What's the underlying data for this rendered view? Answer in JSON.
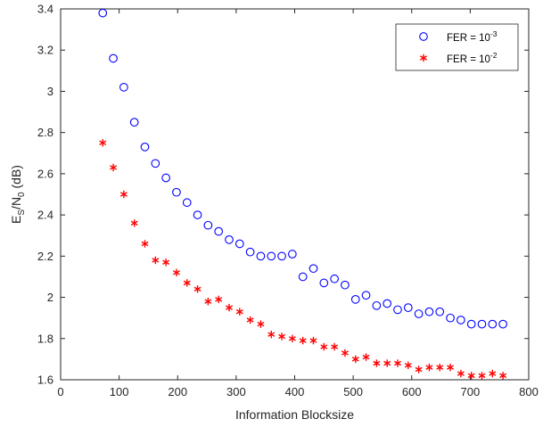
{
  "chart_data": {
    "type": "scatter",
    "xlabel": "Information Blocksize",
    "ylabel": {
      "base": "E",
      "sub1": "S",
      "mid": "/N",
      "sub2": "0",
      "tail": " (dB)"
    },
    "xlim": [
      0,
      800
    ],
    "ylim": [
      1.6,
      3.4
    ],
    "xticks": [
      0,
      100,
      200,
      300,
      400,
      500,
      600,
      700,
      800
    ],
    "yticks": [
      1.6,
      1.8,
      2,
      2.2,
      2.4,
      2.6,
      2.8,
      3,
      3.2,
      3.4
    ],
    "ytick_labels": [
      "1.6",
      "1.8",
      "2",
      "2.2",
      "2.4",
      "2.6",
      "2.8",
      "3",
      "3.2",
      "3.4"
    ],
    "grid": false,
    "legend_position": "top-right",
    "series": [
      {
        "name": "FER = 10-3",
        "legend_label": {
          "text": "FER = 10",
          "exp": "-3"
        },
        "marker": "circle",
        "color": "#0000ff",
        "x": [
          72,
          90,
          108,
          126,
          144,
          162,
          180,
          198,
          216,
          234,
          252,
          270,
          288,
          306,
          324,
          342,
          360,
          378,
          396,
          414,
          432,
          450,
          468,
          486,
          504,
          522,
          540,
          558,
          576,
          594,
          612,
          630,
          648,
          666,
          684,
          702,
          720,
          738,
          756
        ],
        "y": [
          3.38,
          3.16,
          3.02,
          2.85,
          2.73,
          2.65,
          2.58,
          2.51,
          2.46,
          2.4,
          2.35,
          2.32,
          2.28,
          2.26,
          2.22,
          2.2,
          2.2,
          2.2,
          2.21,
          2.1,
          2.14,
          2.07,
          2.09,
          2.06,
          1.99,
          2.01,
          1.96,
          1.97,
          1.94,
          1.95,
          1.92,
          1.93,
          1.93,
          1.9,
          1.89,
          1.87,
          1.87,
          1.87,
          1.87
        ]
      },
      {
        "name": "FER = 10-2",
        "legend_label": {
          "text": "FER = 10",
          "exp": "-2"
        },
        "marker": "star",
        "color": "#ff0000",
        "x": [
          72,
          90,
          108,
          126,
          144,
          162,
          180,
          198,
          216,
          234,
          252,
          270,
          288,
          306,
          324,
          342,
          360,
          378,
          396,
          414,
          432,
          450,
          468,
          486,
          504,
          522,
          540,
          558,
          576,
          594,
          612,
          630,
          648,
          666,
          684,
          702,
          720,
          738,
          756
        ],
        "y": [
          2.75,
          2.63,
          2.5,
          2.36,
          2.26,
          2.18,
          2.17,
          2.12,
          2.07,
          2.04,
          1.98,
          1.99,
          1.95,
          1.93,
          1.89,
          1.87,
          1.82,
          1.81,
          1.8,
          1.79,
          1.79,
          1.76,
          1.76,
          1.73,
          1.7,
          1.71,
          1.68,
          1.68,
          1.68,
          1.67,
          1.65,
          1.66,
          1.66,
          1.66,
          1.63,
          1.62,
          1.62,
          1.63,
          1.62
        ]
      }
    ]
  }
}
